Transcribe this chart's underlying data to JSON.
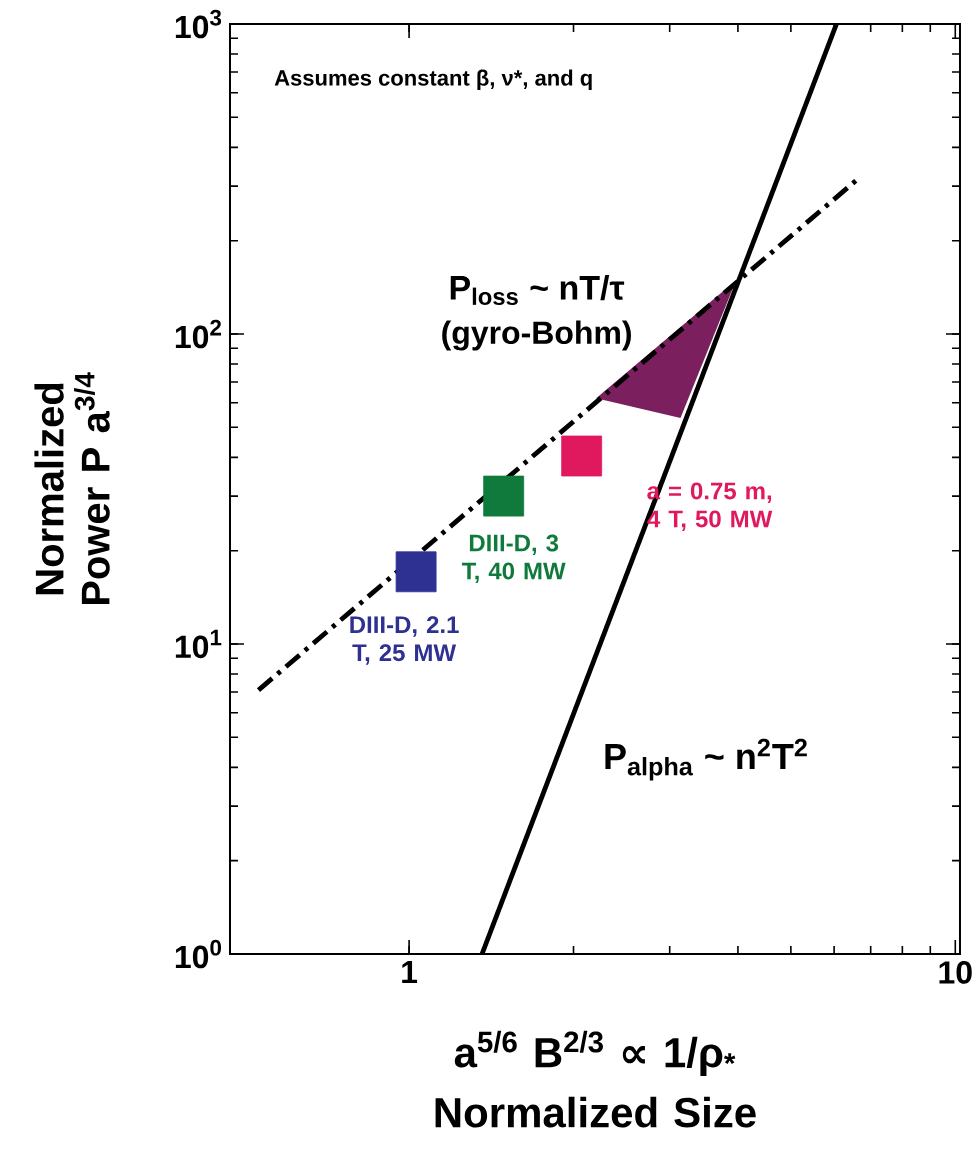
{
  "chart_data": {
    "type": "line",
    "log": "xy",
    "xlabel": "a$^{5/6}$ B$^{2/3}$ ∝ 1/ρ$_{*}$ Normalized Size",
    "ylabel": "Normalized Power P a$^{3/4}$",
    "xlim": [
      0.47,
      10.2
    ],
    "ylim": [
      1,
      1000
    ],
    "xticks": [
      1,
      10
    ],
    "yticks": [
      {
        "value": 1,
        "label": "10$^{0}$"
      },
      {
        "value": 10,
        "label": "10$^{1}$"
      },
      {
        "value": 100,
        "label": "10$^{2}$"
      },
      {
        "value": 1000,
        "label": "10$^{3}$"
      }
    ],
    "series": [
      {
        "type": "area",
        "color": "#7b1f5e",
        "x": [
          2.2,
          3.97,
          3.14
        ],
        "values": [
          62,
          149,
          53.6
        ]
      },
      {
        "color": "#000000",
        "line_style": "dashdot",
        "x": [
          0.53,
          6.6
        ],
        "values": [
          7.1,
          314
        ]
      },
      {
        "color": "#000000",
        "line_style": "solid",
        "x": [
          1.36,
          6.06
        ],
        "values": [
          1,
          1000
        ]
      },
      {
        "type": "scatter",
        "marker": "square",
        "colors": [
          "#2e3192",
          "#0f7a3c",
          "#e0195f"
        ],
        "x": [
          1.03,
          1.49,
          2.07
        ],
        "values": [
          17.1,
          30,
          40.4
        ]
      }
    ],
    "annotations": [
      "Assumes constant β, ν*, and q",
      "P$_{loss}$ ~ nT/τ",
      "(gyro-Bohm)",
      "P$_{alpha}$ ~ n$^{2}$T$^{2}$",
      {
        "text": "DIII-D, 2.1 T, 25 MW",
        "x": 1.03,
        "y": 17.1
      },
      {
        "text": "DIII-D, 3 T, 40 MW",
        "x": 1.49,
        "y": 30
      },
      {
        "text": "a = 0.75 m, 4 T, 50 MW",
        "x": 2.07,
        "y": 40.4
      }
    ]
  }
}
